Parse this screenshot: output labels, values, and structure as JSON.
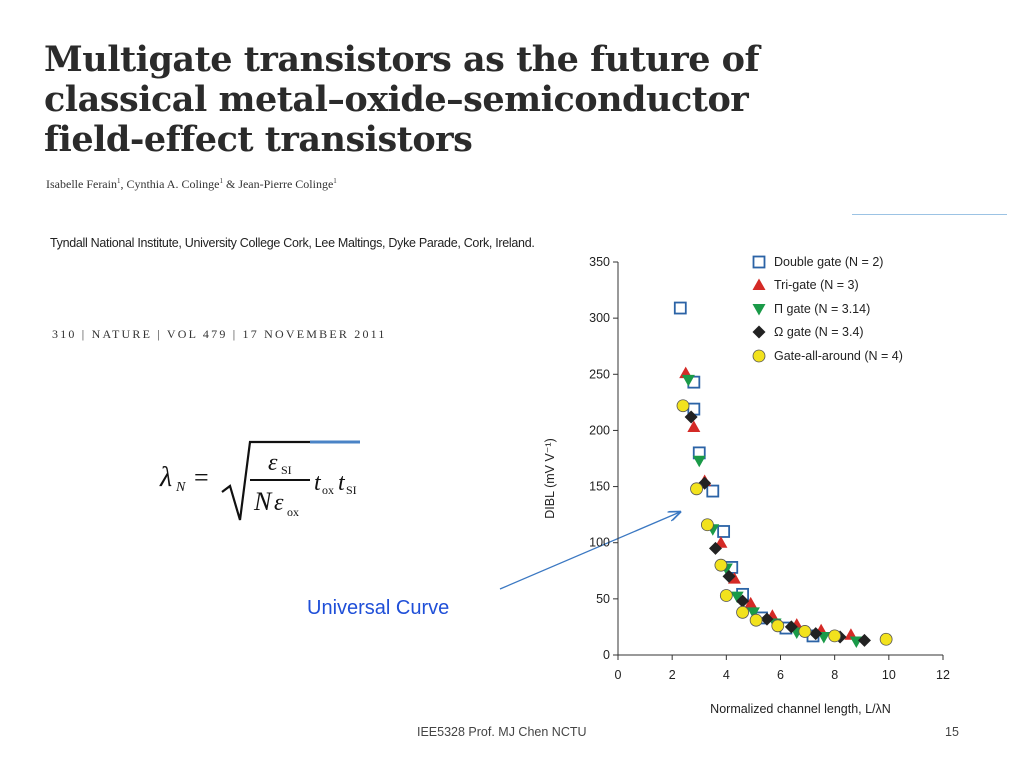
{
  "slide": {
    "title_lines": [
      "Multigate transistors as the future of",
      "classical metal–oxide–semiconductor",
      "field-effect transistors"
    ],
    "authors": {
      "a1": "Isabelle Ferain",
      "a2": "Cynthia A. Colinge",
      "a3": "Jean-Pierre Colinge",
      "sup": "1",
      "sep1": ", ",
      "sep2": " & "
    },
    "affiliation": "Tyndall National Institute, University College Cork, Lee Maltings, Dyke Parade, Cork, Ireland.",
    "citation": "310 | NATURE | VOL 479 | 17 NOVEMBER 2011",
    "annotation": "Universal Curve",
    "footer_left": "IEE5328 Prof. MJ Chen NCTU",
    "page_number": "15",
    "formula": {
      "lhs": "λ",
      "lhs_sub": "N",
      "eq": "=",
      "num": "ε",
      "num_sub": "SI",
      "den_n": "N",
      "den_eps": "ε",
      "den_sub": "ox",
      "t1": "t",
      "t1_sub": "ox",
      "t2": "t",
      "t2_sub": "SI"
    }
  },
  "colors": {
    "double_gate": "#2b63a6",
    "tri_gate": "#d42a26",
    "pi_gate": "#1a9a48",
    "omega_gate": "#222222",
    "gaa_fill": "#f2e21d",
    "annotation": "#1f4fd8",
    "arrow": "#3b78c2"
  },
  "chart_data": {
    "type": "scatter",
    "xlabel": "Normalized channel length, L/λN",
    "ylabel": "DIBL (mV V⁻¹)",
    "xlim": [
      0,
      12
    ],
    "ylim": [
      0,
      350
    ],
    "xticks": [
      "0",
      "2",
      "4",
      "6",
      "8",
      "10",
      "12"
    ],
    "yticks": [
      "0",
      "50",
      "100",
      "150",
      "200",
      "250",
      "300",
      "350"
    ],
    "legend_position": "top-right",
    "series": [
      {
        "name": "Double gate (N = 2)",
        "marker": "open-square",
        "points": [
          [
            2.3,
            309
          ],
          [
            2.8,
            243
          ],
          [
            2.8,
            219
          ],
          [
            3.0,
            180
          ],
          [
            3.5,
            146
          ],
          [
            3.9,
            110
          ],
          [
            4.2,
            78
          ],
          [
            4.6,
            54
          ],
          [
            5.3,
            33
          ],
          [
            6.2,
            24
          ],
          [
            7.2,
            17
          ]
        ]
      },
      {
        "name": "Tri-gate (N = 3)",
        "marker": "triangle-up",
        "points": [
          [
            2.5,
            251
          ],
          [
            2.8,
            203
          ],
          [
            3.2,
            155
          ],
          [
            3.8,
            100
          ],
          [
            4.3,
            68
          ],
          [
            4.9,
            46
          ],
          [
            5.7,
            35
          ],
          [
            6.6,
            27
          ],
          [
            7.5,
            22
          ],
          [
            8.6,
            18
          ]
        ]
      },
      {
        "name": "Π gate (N = 3.14)",
        "marker": "triangle-down",
        "points": [
          [
            2.6,
            245
          ],
          [
            3.0,
            173
          ],
          [
            3.5,
            112
          ],
          [
            4.0,
            77
          ],
          [
            4.4,
            52
          ],
          [
            5.0,
            38
          ],
          [
            5.8,
            28
          ],
          [
            6.6,
            20
          ],
          [
            7.6,
            16
          ],
          [
            8.8,
            12
          ]
        ]
      },
      {
        "name": "Ω gate (N = 3.4)",
        "marker": "diamond",
        "points": [
          [
            2.7,
            212
          ],
          [
            3.2,
            153
          ],
          [
            3.6,
            95
          ],
          [
            4.1,
            70
          ],
          [
            4.6,
            48
          ],
          [
            5.5,
            32
          ],
          [
            6.4,
            25
          ],
          [
            7.3,
            19
          ],
          [
            8.2,
            16
          ],
          [
            9.1,
            13
          ]
        ]
      },
      {
        "name": "Gate-all-around (N = 4)",
        "marker": "circle",
        "points": [
          [
            2.4,
            222
          ],
          [
            2.9,
            148
          ],
          [
            3.3,
            116
          ],
          [
            3.8,
            80
          ],
          [
            4.0,
            53
          ],
          [
            4.6,
            38
          ],
          [
            5.1,
            31
          ],
          [
            5.9,
            26
          ],
          [
            6.9,
            21
          ],
          [
            8.0,
            17
          ],
          [
            9.9,
            14
          ]
        ]
      }
    ]
  }
}
